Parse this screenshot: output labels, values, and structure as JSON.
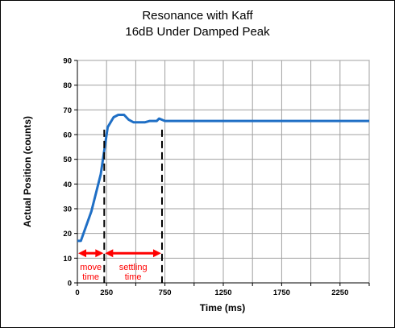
{
  "chart_data": {
    "type": "line",
    "title": "Resonance with Kaff",
    "subtitle": "16dB Under Damped Peak",
    "xlabel": "Time (ms)",
    "ylabel": "Actual Position (counts)",
    "xlim": [
      0,
      2500
    ],
    "ylim": [
      0,
      90
    ],
    "x_gridlines": [
      0,
      250,
      500,
      750,
      1000,
      1250,
      1500,
      1750,
      2000,
      2250,
      2500
    ],
    "x_tick_labels": [
      {
        "value": 0,
        "label": "0"
      },
      {
        "value": 250,
        "label": "250"
      },
      {
        "value": 750,
        "label": "750"
      },
      {
        "value": 1250,
        "label": "1250"
      },
      {
        "value": 1750,
        "label": "1750"
      },
      {
        "value": 2250,
        "label": "2250"
      }
    ],
    "y_ticks": [
      0,
      10,
      20,
      30,
      40,
      50,
      60,
      70,
      80,
      90
    ],
    "y_tick_labels": [
      "0",
      "10",
      "20",
      "30",
      "40",
      "50",
      "60",
      "70",
      "80",
      "90"
    ],
    "grid": true,
    "colors": {
      "line": "#1f6fc5",
      "annotation": "#ff0000",
      "grid": "#a0a0a0"
    },
    "series": [
      {
        "x": [
          0,
          30,
          120,
          200,
          260,
          310,
          350,
          400,
          440,
          480,
          520,
          580,
          620,
          650,
          680,
          700,
          750,
          1000,
          1500,
          2000,
          2500
        ],
        "y": [
          17,
          17,
          29,
          44,
          63,
          67,
          68,
          68,
          66,
          65,
          65,
          65,
          65.5,
          65.5,
          65.5,
          66.5,
          65.5,
          65.5,
          65.5,
          65.5,
          65.5
        ]
      }
    ],
    "vlines": [
      230,
      725
    ],
    "annotations": [
      {
        "label_lines": [
          "move",
          "time"
        ],
        "from": 0,
        "to": 230,
        "y": 12
      },
      {
        "label_lines": [
          "settling",
          "time"
        ],
        "from": 230,
        "to": 725,
        "y": 12
      }
    ]
  }
}
